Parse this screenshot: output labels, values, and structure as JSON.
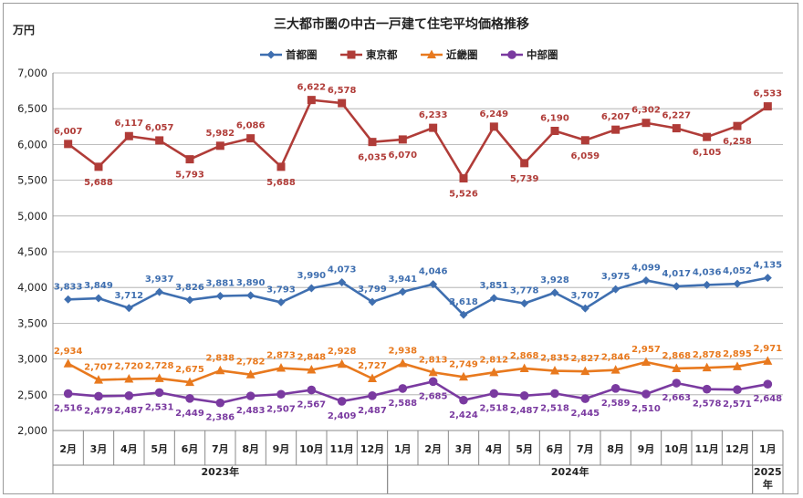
{
  "chart_data": {
    "type": "line",
    "title": "三大都市圏の中古一戸建て住宅平均価格推移",
    "ylabel": "万円",
    "ylim": [
      2000,
      7000
    ],
    "yticks": [
      "2,000",
      "2,500",
      "3,000",
      "3,500",
      "4,000",
      "4,500",
      "5,000",
      "5,500",
      "6,000",
      "6,500",
      "7,000"
    ],
    "categories": [
      "2月",
      "3月",
      "4月",
      "5月",
      "6月",
      "7月",
      "8月",
      "9月",
      "10月",
      "11月",
      "12月",
      "1月",
      "2月",
      "3月",
      "4月",
      "5月",
      "6月",
      "7月",
      "8月",
      "9月",
      "10月",
      "11月",
      "12月",
      "1月"
    ],
    "year_groups": [
      {
        "label": "2023年",
        "start": 0,
        "end": 10
      },
      {
        "label": "2024年",
        "start": 11,
        "end": 22
      },
      {
        "label": "2025",
        "label2": "年",
        "start": 23,
        "end": 23
      }
    ],
    "grid": true,
    "legend_position": "top",
    "series": [
      {
        "name": "首都圏",
        "color": "#3f6fb0",
        "marker": "diamond",
        "label_pos": "above",
        "values": [
          3833,
          3849,
          3712,
          3937,
          3826,
          3881,
          3890,
          3793,
          3990,
          4073,
          3799,
          3941,
          4046,
          3618,
          3851,
          3778,
          3928,
          3707,
          3975,
          4099,
          4017,
          4036,
          4052,
          4135
        ]
      },
      {
        "name": "東京都",
        "color": "#b03c38",
        "marker": "square",
        "label_pos": "alt",
        "values": [
          6007,
          5688,
          6117,
          6057,
          5793,
          5982,
          6086,
          5688,
          6622,
          6578,
          6035,
          6070,
          6233,
          5526,
          6249,
          5739,
          6190,
          6059,
          6207,
          6302,
          6227,
          6105,
          6258,
          6533
        ]
      },
      {
        "name": "近畿圏",
        "color": "#e8791e",
        "marker": "triangle",
        "label_pos": "above",
        "values": [
          2934,
          2707,
          2720,
          2728,
          2675,
          2838,
          2782,
          2873,
          2848,
          2928,
          2727,
          2938,
          2813,
          2749,
          2812,
          2868,
          2835,
          2827,
          2846,
          2957,
          2868,
          2878,
          2895,
          2971
        ]
      },
      {
        "name": "中部圏",
        "color": "#7a3aa0",
        "marker": "circle",
        "label_pos": "below",
        "values": [
          2516,
          2479,
          2487,
          2531,
          2449,
          2386,
          2483,
          2507,
          2567,
          2409,
          2487,
          2588,
          2685,
          2424,
          2518,
          2487,
          2518,
          2445,
          2589,
          2510,
          2663,
          2578,
          2571,
          2648
        ]
      }
    ]
  }
}
